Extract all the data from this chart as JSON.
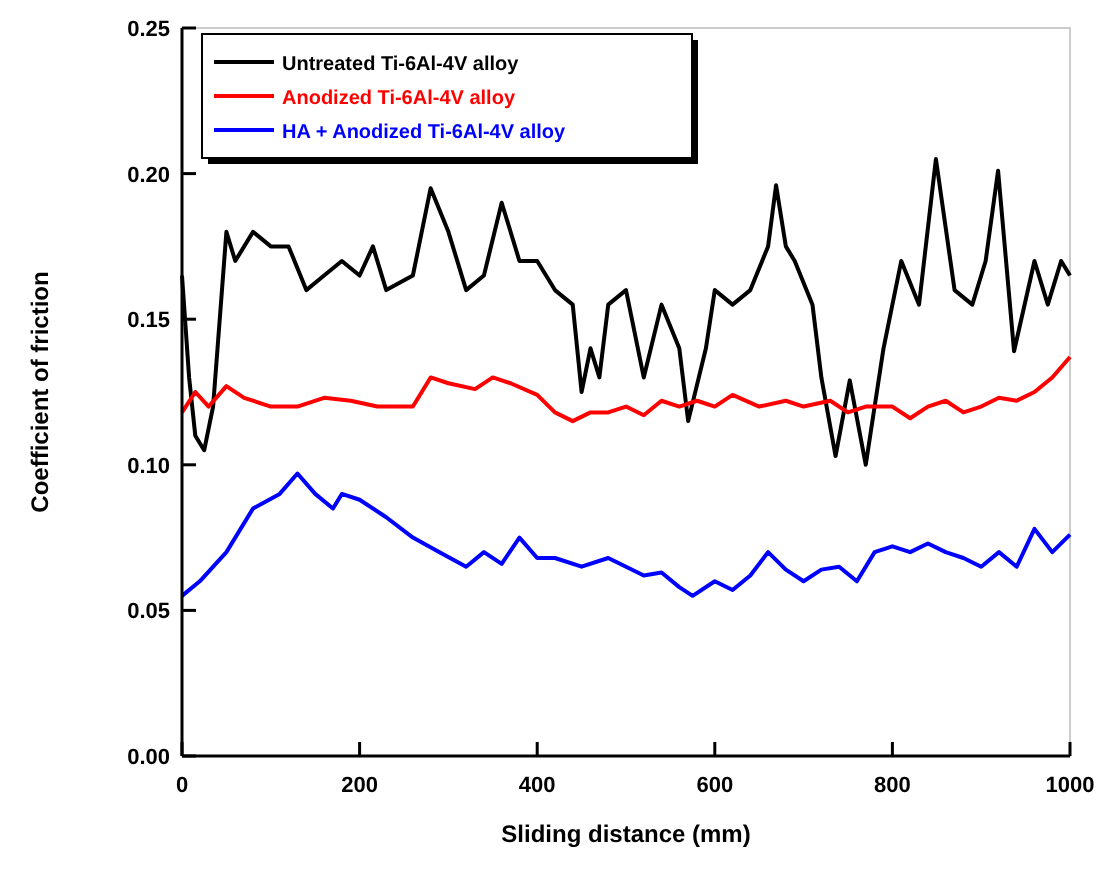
{
  "chart_data": {
    "type": "line",
    "xlabel": "Sliding distance (mm)",
    "ylabel": "Coefficient of friction",
    "xlim": [
      0,
      1000
    ],
    "ylim": [
      0,
      0.25
    ],
    "xticks": [
      0,
      200,
      400,
      600,
      800,
      1000
    ],
    "yticks": [
      {
        "value": 0,
        "label": "0.00"
      },
      {
        "value": 0.05,
        "label": "0.05"
      },
      {
        "value": 0.1,
        "label": "0.10"
      },
      {
        "value": 0.15,
        "label": "0.15"
      },
      {
        "value": 0.2,
        "label": "0.20"
      },
      {
        "value": 0.25,
        "label": "0.25"
      }
    ],
    "grid": false,
    "legend": "top left",
    "line_style": "solid",
    "marker": "none",
    "series": [
      {
        "name": "Untreated Ti-6Al-4V alloy",
        "color": "#000000",
        "x": [
          0,
          8,
          15,
          25,
          35,
          50,
          60,
          80,
          100,
          120,
          140,
          160,
          180,
          200,
          215,
          230,
          260,
          280,
          300,
          320,
          340,
          360,
          380,
          400,
          420,
          440,
          450,
          460,
          470,
          480,
          500,
          520,
          540,
          560,
          570,
          590,
          600,
          620,
          640,
          660,
          669,
          680,
          690,
          710,
          720,
          736,
          752,
          770,
          790,
          810,
          830,
          849,
          870,
          890,
          905,
          919,
          937,
          960,
          975,
          990,
          1000
        ],
        "values": [
          0.165,
          0.13,
          0.11,
          0.105,
          0.12,
          0.18,
          0.17,
          0.18,
          0.175,
          0.175,
          0.16,
          0.165,
          0.17,
          0.165,
          0.175,
          0.16,
          0.165,
          0.195,
          0.18,
          0.16,
          0.165,
          0.19,
          0.17,
          0.17,
          0.16,
          0.155,
          0.125,
          0.14,
          0.13,
          0.155,
          0.16,
          0.13,
          0.155,
          0.14,
          0.115,
          0.14,
          0.16,
          0.155,
          0.16,
          0.175,
          0.196,
          0.175,
          0.17,
          0.155,
          0.13,
          0.103,
          0.129,
          0.1,
          0.14,
          0.17,
          0.155,
          0.205,
          0.16,
          0.155,
          0.17,
          0.201,
          0.139,
          0.17,
          0.155,
          0.17,
          0.165
        ]
      },
      {
        "name": "Anodized  Ti-6Al-4V alloy",
        "color": "#ff0000",
        "x": [
          0,
          15,
          30,
          50,
          70,
          100,
          130,
          160,
          190,
          220,
          260,
          280,
          300,
          330,
          350,
          370,
          400,
          420,
          440,
          460,
          480,
          500,
          520,
          540,
          560,
          580,
          600,
          620,
          650,
          680,
          700,
          730,
          750,
          770,
          800,
          820,
          840,
          860,
          880,
          900,
          920,
          940,
          960,
          980,
          1000
        ],
        "values": [
          0.118,
          0.125,
          0.12,
          0.127,
          0.123,
          0.12,
          0.12,
          0.123,
          0.122,
          0.12,
          0.12,
          0.13,
          0.128,
          0.126,
          0.13,
          0.128,
          0.124,
          0.118,
          0.115,
          0.118,
          0.118,
          0.12,
          0.117,
          0.122,
          0.12,
          0.122,
          0.12,
          0.124,
          0.12,
          0.122,
          0.12,
          0.122,
          0.118,
          0.12,
          0.12,
          0.116,
          0.12,
          0.122,
          0.118,
          0.12,
          0.123,
          0.122,
          0.125,
          0.13,
          0.137
        ]
      },
      {
        "name": "HA + Anodized Ti-6Al-4V alloy",
        "color": "#0000ff",
        "x": [
          0,
          20,
          50,
          80,
          110,
          130,
          150,
          170,
          180,
          200,
          230,
          260,
          290,
          320,
          340,
          360,
          380,
          400,
          420,
          450,
          480,
          500,
          520,
          540,
          560,
          575,
          600,
          620,
          640,
          660,
          680,
          700,
          720,
          740,
          760,
          780,
          800,
          820,
          840,
          860,
          880,
          900,
          920,
          940,
          960,
          980,
          1000
        ],
        "values": [
          0.055,
          0.06,
          0.07,
          0.085,
          0.09,
          0.097,
          0.09,
          0.085,
          0.09,
          0.088,
          0.082,
          0.075,
          0.07,
          0.065,
          0.07,
          0.066,
          0.075,
          0.068,
          0.068,
          0.065,
          0.068,
          0.065,
          0.062,
          0.063,
          0.058,
          0.055,
          0.06,
          0.057,
          0.062,
          0.07,
          0.064,
          0.06,
          0.064,
          0.065,
          0.06,
          0.07,
          0.072,
          0.07,
          0.073,
          0.07,
          0.068,
          0.065,
          0.07,
          0.065,
          0.078,
          0.07,
          0.076
        ]
      }
    ]
  }
}
